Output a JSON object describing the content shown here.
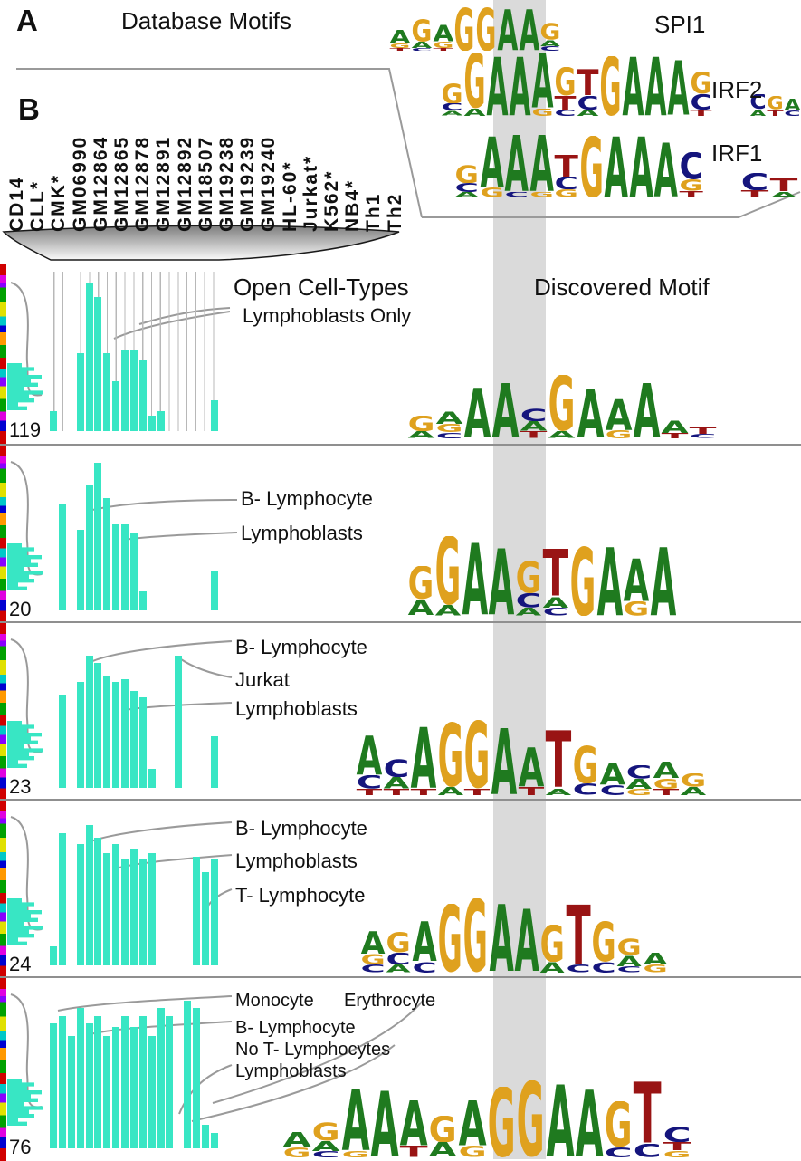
{
  "colors": {
    "bar": "#38e6c4",
    "highlight_band": "#dadada",
    "connector": "#9a9a9a",
    "logo_letters": {
      "A": "#1f7a1f",
      "C": "#15157d",
      "G": "#dfa11e",
      "T": "#991414"
    }
  },
  "panels": {
    "a": "A",
    "b": "B"
  },
  "headers": {
    "database_motifs": "Database Motifs",
    "open_cell_types": "Open Cell-Types",
    "discovered_motif": "Discovered Motif"
  },
  "cell_types": [
    "CD14",
    "CLL*",
    "CMK*",
    "GM06990",
    "GM12864",
    "GM12865",
    "GM12878",
    "GM12891",
    "GM12892",
    "GM18507",
    "GM19238",
    "GM19239",
    "GM19240",
    "HL-60*",
    "Jurkat*",
    "K562*",
    "NB4*",
    "Th1",
    "Th2"
  ],
  "database_motifs": [
    {
      "name": "SPI1",
      "consensus": "AGAGGAAG",
      "logo": [
        [
          [
            "A",
            0.3
          ],
          [
            "G",
            0.1
          ],
          [
            "T",
            0.07
          ]
        ],
        [
          [
            "G",
            0.5
          ],
          [
            "A",
            0.14
          ],
          [
            "C",
            0.07
          ]
        ],
        [
          [
            "A",
            0.38
          ],
          [
            "G",
            0.14
          ],
          [
            "T",
            0.07
          ]
        ],
        [
          [
            "G",
            0.97
          ]
        ],
        [
          [
            "G",
            0.97
          ]
        ],
        [
          [
            "A",
            0.92
          ]
        ],
        [
          [
            "A",
            0.92
          ]
        ],
        [
          [
            "G",
            0.38
          ],
          [
            "A",
            0.15
          ],
          [
            "C",
            0.1
          ]
        ]
      ]
    },
    {
      "name": "IRF2",
      "consensus": "GGAAAGTGAAAG",
      "logo": [
        [
          [
            "G",
            0.32
          ],
          [
            "C",
            0.12
          ],
          [
            "A",
            0.08
          ]
        ],
        [
          [
            "G",
            0.88
          ],
          [
            "A",
            0.12
          ]
        ],
        [
          [
            "A",
            0.95
          ]
        ],
        [
          [
            "A",
            0.95
          ]
        ],
        [
          [
            "A",
            0.88
          ],
          [
            "G",
            0.12
          ]
        ],
        [
          [
            "G",
            0.45
          ],
          [
            "T",
            0.22
          ],
          [
            "C",
            0.1
          ]
        ],
        [
          [
            "T",
            0.42
          ],
          [
            "C",
            0.22
          ],
          [
            "A",
            0.1
          ]
        ],
        [
          [
            "G",
            0.95
          ]
        ],
        [
          [
            "A",
            0.95
          ]
        ],
        [
          [
            "A",
            0.95
          ]
        ],
        [
          [
            "A",
            0.88
          ]
        ],
        [
          [
            "G",
            0.35
          ],
          [
            "C",
            0.25
          ],
          [
            "T",
            0.1
          ]
        ]
      ],
      "tail": [
        [
          [
            "C",
            0.55
          ],
          [
            "A",
            0.25
          ]
        ],
        [
          [
            "G",
            0.5
          ],
          [
            "T",
            0.25
          ]
        ],
        [
          [
            "A",
            0.45
          ],
          [
            "C",
            0.2
          ]
        ]
      ]
    },
    {
      "name": "IRF1",
      "consensus": "GAAATGAAAC",
      "logo": [
        [
          [
            "G",
            0.28
          ],
          [
            "C",
            0.14
          ],
          [
            "A",
            0.08
          ]
        ],
        [
          [
            "A",
            0.8
          ],
          [
            "G",
            0.15
          ]
        ],
        [
          [
            "A",
            0.88
          ],
          [
            "C",
            0.08
          ]
        ],
        [
          [
            "A",
            0.88
          ],
          [
            "G",
            0.08
          ]
        ],
        [
          [
            "T",
            0.34
          ],
          [
            "C",
            0.2
          ],
          [
            "G",
            0.12
          ]
        ],
        [
          [
            "G",
            0.95
          ]
        ],
        [
          [
            "A",
            0.95
          ]
        ],
        [
          [
            "A",
            0.95
          ]
        ],
        [
          [
            "A",
            0.85
          ]
        ],
        [
          [
            "C",
            0.42
          ],
          [
            "G",
            0.18
          ],
          [
            "T",
            0.1
          ]
        ]
      ],
      "tail": [
        [
          [
            "C",
            0.6
          ],
          [
            "T",
            0.25
          ]
        ],
        [
          [
            "T",
            0.45
          ],
          [
            "A",
            0.2
          ]
        ]
      ]
    }
  ],
  "rows": [
    {
      "count": "119",
      "annotations": [
        "Lymphoblasts Only"
      ],
      "motif_consensus": "GAAACGAAA",
      "motif": [
        [
          [
            "G",
            0.22
          ],
          [
            "A",
            0.1
          ]
        ],
        [
          [
            "A",
            0.18
          ],
          [
            "G",
            0.12
          ],
          [
            "C",
            0.08
          ]
        ],
        [
          [
            "A",
            0.72
          ]
        ],
        [
          [
            "A",
            0.78
          ]
        ],
        [
          [
            "C",
            0.18
          ],
          [
            "A",
            0.14
          ],
          [
            "T",
            0.1
          ]
        ],
        [
          [
            "G",
            0.8
          ],
          [
            "A",
            0.1
          ]
        ],
        [
          [
            "A",
            0.7
          ]
        ],
        [
          [
            "A",
            0.45
          ],
          [
            "G",
            0.12
          ]
        ],
        [
          [
            "A",
            0.78
          ]
        ],
        [
          [
            "A",
            0.18
          ],
          [
            "T",
            0.08
          ]
        ],
        [
          [
            "T",
            0.1
          ],
          [
            "C",
            0.06
          ]
        ]
      ]
    },
    {
      "count": "20",
      "annotations": [
        "B- Lymphocyte",
        "Lymphoblasts"
      ],
      "motif_consensus": "GGAAGTGAAA",
      "motif": [
        [
          [
            "G",
            0.42
          ],
          [
            "A",
            0.2
          ]
        ],
        [
          [
            "G",
            0.9
          ],
          [
            "A",
            0.14
          ]
        ],
        [
          [
            "A",
            0.92
          ]
        ],
        [
          [
            "A",
            0.85
          ]
        ],
        [
          [
            "G",
            0.4
          ],
          [
            "C",
            0.18
          ],
          [
            "A",
            0.1
          ]
        ],
        [
          [
            "T",
            0.6
          ],
          [
            "A",
            0.14
          ],
          [
            "C",
            0.1
          ]
        ],
        [
          [
            "G",
            0.88
          ]
        ],
        [
          [
            "A",
            0.88
          ]
        ],
        [
          [
            "A",
            0.55
          ],
          [
            "G",
            0.18
          ]
        ],
        [
          [
            "A",
            0.88
          ]
        ]
      ]
    },
    {
      "count": "23",
      "annotations": [
        "B- Lymphocyte",
        "Jurkat",
        "Lymphoblasts"
      ],
      "motif_consensus": "ACAGGAATGA",
      "motif": [
        [
          [
            "A",
            0.48
          ],
          [
            "C",
            0.16
          ],
          [
            "T",
            0.08
          ]
        ],
        [
          [
            "C",
            0.22
          ],
          [
            "A",
            0.14
          ],
          [
            "T",
            0.08
          ]
        ],
        [
          [
            "A",
            0.75
          ],
          [
            "T",
            0.08
          ]
        ],
        [
          [
            "G",
            0.78
          ],
          [
            "A",
            0.1
          ]
        ],
        [
          [
            "G",
            0.82
          ],
          [
            "T",
            0.08
          ]
        ],
        [
          [
            "A",
            0.82
          ]
        ],
        [
          [
            "A",
            0.48
          ],
          [
            "T",
            0.1
          ]
        ],
        [
          [
            "T",
            0.7
          ],
          [
            "A",
            0.08
          ]
        ],
        [
          [
            "G",
            0.46
          ],
          [
            "C",
            0.14
          ]
        ],
        [
          [
            "A",
            0.26
          ],
          [
            "C",
            0.12
          ]
        ],
        [
          [
            "C",
            0.16
          ],
          [
            "A",
            0.12
          ],
          [
            "G",
            0.08
          ]
        ],
        [
          [
            "A",
            0.2
          ],
          [
            "G",
            0.12
          ],
          [
            "T",
            0.08
          ]
        ],
        [
          [
            "G",
            0.16
          ],
          [
            "A",
            0.1
          ]
        ]
      ]
    },
    {
      "count": "24",
      "annotations": [
        "B- Lymphocyte",
        "Lymphoblasts",
        "T- Lymphocyte"
      ],
      "motif_consensus": "AGGAAGTG",
      "motif": [
        [
          [
            "A",
            0.3
          ],
          [
            "G",
            0.14
          ],
          [
            "C",
            0.1
          ]
        ],
        [
          [
            "G",
            0.26
          ],
          [
            "C",
            0.16
          ],
          [
            "A",
            0.1
          ]
        ],
        [
          [
            "A",
            0.52
          ],
          [
            "C",
            0.14
          ]
        ],
        [
          [
            "G",
            0.88
          ]
        ],
        [
          [
            "G",
            0.95
          ]
        ],
        [
          [
            "A",
            0.88
          ]
        ],
        [
          [
            "A",
            0.82
          ]
        ],
        [
          [
            "G",
            0.48
          ],
          [
            "A",
            0.14
          ]
        ],
        [
          [
            "T",
            0.78
          ],
          [
            "C",
            0.1
          ]
        ],
        [
          [
            "G",
            0.52
          ],
          [
            "C",
            0.14
          ]
        ],
        [
          [
            "G",
            0.22
          ],
          [
            "A",
            0.14
          ],
          [
            "C",
            0.08
          ]
        ],
        [
          [
            "A",
            0.16
          ],
          [
            "G",
            0.1
          ]
        ]
      ]
    },
    {
      "count": "76",
      "annotations": [
        "Monocyte",
        "Erythrocyte",
        "B- Lymphocyte",
        "No T- Lymphocytes",
        "Lymphoblasts"
      ],
      "motif_consensus": "AAAGAGGAAGT",
      "motif": [
        [
          [
            "A",
            0.18
          ],
          [
            "G",
            0.12
          ]
        ],
        [
          [
            "G",
            0.22
          ],
          [
            "A",
            0.12
          ],
          [
            "C",
            0.08
          ]
        ],
        [
          [
            "A",
            0.75
          ],
          [
            "G",
            0.08
          ]
        ],
        [
          [
            "A",
            0.8
          ]
        ],
        [
          [
            "A",
            0.55
          ],
          [
            "T",
            0.14
          ]
        ],
        [
          [
            "G",
            0.32
          ],
          [
            "A",
            0.18
          ]
        ],
        [
          [
            "A",
            0.55
          ],
          [
            "G",
            0.14
          ]
        ],
        [
          [
            "G",
            0.85
          ]
        ],
        [
          [
            "G",
            0.92
          ]
        ],
        [
          [
            "A",
            0.88
          ]
        ],
        [
          [
            "A",
            0.82
          ]
        ],
        [
          [
            "G",
            0.55
          ],
          [
            "C",
            0.12
          ]
        ],
        [
          [
            "T",
            0.75
          ],
          [
            "C",
            0.16
          ]
        ],
        [
          [
            "C",
            0.18
          ],
          [
            "T",
            0.1
          ],
          [
            "G",
            0.08
          ]
        ]
      ]
    }
  ],
  "chart_data": {
    "type": "bar",
    "categories": [
      "CD14",
      "CLL*",
      "CMK*",
      "GM06990",
      "GM12864",
      "GM12865",
      "GM12878",
      "GM12891",
      "GM12892",
      "GM18507",
      "GM19238",
      "GM19239",
      "GM19240",
      "HL-60*",
      "Jurkat*",
      "K562*",
      "NB4*",
      "Th1",
      "Th2"
    ],
    "series": [
      {
        "name": "cluster_119_sites",
        "values": [
          0.13,
          0,
          0,
          0.5,
          0.95,
          0.86,
          0.5,
          0.32,
          0.52,
          0.52,
          0.46,
          0.1,
          0.13,
          0,
          0,
          0,
          0,
          0,
          0.2
        ]
      },
      {
        "name": "cluster_20_sites",
        "values": [
          0,
          0.68,
          0,
          0.52,
          0.8,
          0.95,
          0.72,
          0.55,
          0.55,
          0.5,
          0.12,
          0,
          0,
          0,
          0,
          0,
          0,
          0,
          0.25
        ]
      },
      {
        "name": "cluster_23_sites",
        "values": [
          0,
          0.6,
          0,
          0.68,
          0.85,
          0.8,
          0.72,
          0.68,
          0.7,
          0.62,
          0.58,
          0.12,
          0,
          0,
          0.85,
          0,
          0,
          0,
          0.33
        ]
      },
      {
        "name": "cluster_24_sites",
        "values": [
          0.12,
          0.85,
          0,
          0.78,
          0.9,
          0.82,
          0.72,
          0.78,
          0.68,
          0.75,
          0.68,
          0.72,
          0,
          0,
          0,
          0,
          0.7,
          0.6,
          0.68
        ]
      },
      {
        "name": "cluster_76_sites",
        "values": [
          0.8,
          0.85,
          0.72,
          0.9,
          0.8,
          0.85,
          0.72,
          0.78,
          0.85,
          0.78,
          0.85,
          0.72,
          0.9,
          0.85,
          0,
          0.95,
          0.9,
          0.15,
          0.1
        ]
      }
    ],
    "ylim": [
      0,
      1
    ],
    "ylabel": "",
    "title": ""
  }
}
